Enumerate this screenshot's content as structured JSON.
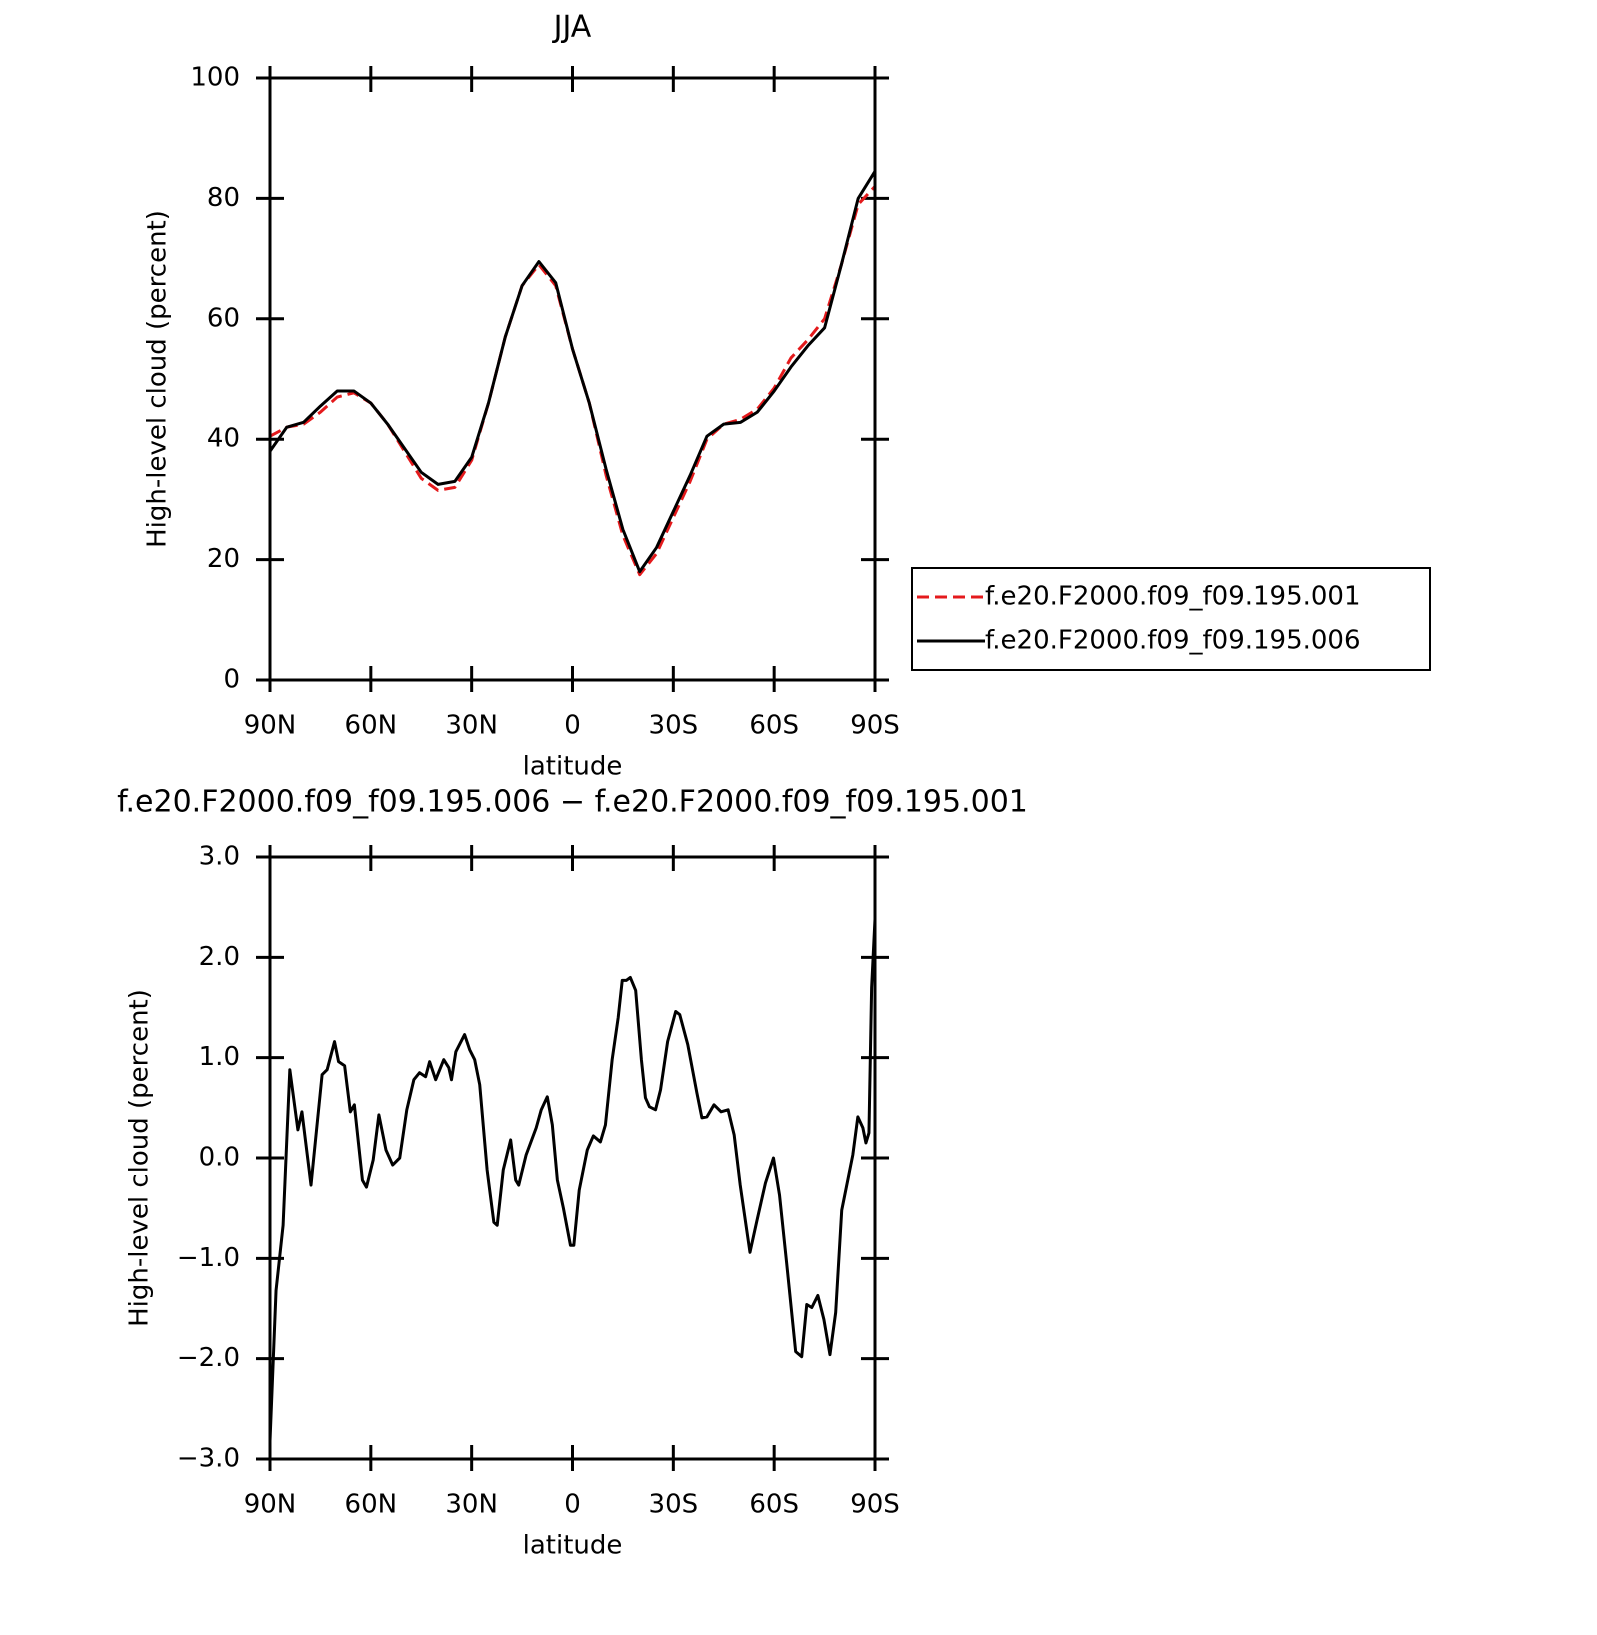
{
  "chart_data": [
    {
      "type": "line",
      "title": "JJA",
      "xlabel": "latitude",
      "ylabel": "High-level cloud (percent)",
      "xlim": [
        90,
        -90
      ],
      "xticks": [
        {
          "value": 90,
          "label": "90N"
        },
        {
          "value": 60,
          "label": "60N"
        },
        {
          "value": 30,
          "label": "30N"
        },
        0,
        {
          "value": -30,
          "label": "30S"
        },
        {
          "value": -60,
          "label": "60S"
        },
        {
          "value": -90,
          "label": "90S"
        }
      ],
      "ylim": [
        0,
        100
      ],
      "yticks": [
        0,
        20,
        40,
        60,
        80,
        100
      ],
      "legend": "right",
      "x": [
        90,
        85,
        80,
        75,
        70,
        65,
        60,
        55,
        50,
        45,
        40,
        35,
        30,
        25,
        20,
        15,
        10,
        5,
        0,
        -5,
        -10,
        -15,
        -20,
        -25,
        -30,
        -35,
        -40,
        -45,
        -50,
        -55,
        -60,
        -65,
        -70,
        -75,
        -80,
        -85,
        -90
      ],
      "series": [
        {
          "name": "f.e20.F2000.f09_f09.195.001",
          "color": "#e41a1c",
          "linestyle": "dashed",
          "values": [
            40.5,
            42,
            42.5,
            44.5,
            47,
            47.7,
            46,
            42.5,
            38,
            33.5,
            31.5,
            32,
            36.5,
            46,
            57,
            65.5,
            69,
            65.5,
            55,
            46,
            34,
            24,
            17.5,
            21,
            27,
            33,
            40,
            42.5,
            43.3,
            45,
            48.5,
            53.5,
            56.5,
            60,
            69,
            79,
            82
          ]
        },
        {
          "name": "f.e20.F2000.f09_f09.195.006",
          "color": "#000000",
          "linestyle": "solid",
          "values": [
            38,
            42,
            42.8,
            45.5,
            48,
            48,
            46,
            42.5,
            38.5,
            34.5,
            32.5,
            33,
            37,
            46,
            57,
            65.5,
            69.5,
            66,
            55,
            46,
            35,
            25,
            18,
            22,
            28,
            34,
            40.5,
            42.5,
            42.8,
            44.5,
            48,
            52,
            55.5,
            58.5,
            69,
            80,
            84.5
          ]
        }
      ]
    },
    {
      "type": "line",
      "title": "f.e20.F2000.f09_f09.195.006 − f.e20.F2000.f09_f09.195.001",
      "xlabel": "latitude",
      "ylabel": "High-level cloud (percent)",
      "xlim": [
        90,
        -90
      ],
      "xticks": [
        {
          "value": 90,
          "label": "90N"
        },
        {
          "value": 60,
          "label": "60N"
        },
        {
          "value": 30,
          "label": "30N"
        },
        0,
        {
          "value": -30,
          "label": "30S"
        },
        {
          "value": -60,
          "label": "60S"
        },
        {
          "value": -90,
          "label": "90S"
        }
      ],
      "ylim": [
        -3,
        3
      ],
      "yticks": [
        {
          "value": -3,
          "label": "−3.0"
        },
        {
          "value": -2,
          "label": "−2.0"
        },
        {
          "value": -1,
          "label": "−1.0"
        },
        {
          "value": 0,
          "label": "0.0"
        },
        {
          "value": 1,
          "label": "1.0"
        },
        {
          "value": 2,
          "label": "2.0"
        },
        {
          "value": 3,
          "label": "3.0"
        }
      ],
      "x": [
        90,
        88.2,
        86.1,
        84.1,
        81.7,
        80.5,
        77.8,
        74.5,
        73,
        70.8,
        69.6,
        67.8,
        66.1,
        64.9,
        62.5,
        61.3,
        59.3,
        57.6,
        55.5,
        53.5,
        51.4,
        49.3,
        47.2,
        45.5,
        43.7,
        42.5,
        40.7,
        38.3,
        36.8,
        36,
        34.7,
        32.1,
        30.6,
        29.1,
        27.6,
        25.4,
        23.4,
        22.4,
        20.6,
        18.4,
        16.9,
        16,
        13.8,
        10.8,
        9.3,
        7.5,
        6,
        4.5,
        2.7,
        0.6,
        -0.4,
        -2,
        -4.4,
        -6.2,
        -8.3,
        -9.8,
        -11.8,
        -13.6,
        -14.8,
        -16,
        -17.2,
        -18.8,
        -20.5,
        -21.7,
        -22.9,
        -24.7,
        -26.2,
        -28.3,
        -30.7,
        -31.9,
        -34.3,
        -37,
        -38.5,
        -40,
        -42.1,
        -44.2,
        -46.3,
        -48.1,
        -49.9,
        -52.8,
        -54.9,
        -57.4,
        -59.8,
        -61.6,
        -63.7,
        -66.4,
        -68.2,
        -69.7,
        -71.2,
        -73,
        -74.8,
        -76.6,
        -78.3,
        -80.1,
        -81.9,
        -83.4,
        -84.9,
        -86.4,
        -87.3,
        -88.2,
        -89,
        -90
      ],
      "series": [
        {
          "color": "#000000",
          "linestyle": "solid",
          "values": [
            -2.82,
            -1.32,
            -0.67,
            0.88,
            0.28,
            0.46,
            -0.27,
            0.83,
            0.88,
            1.16,
            0.96,
            0.92,
            0.46,
            0.53,
            -0.22,
            -0.29,
            -0.02,
            0.43,
            0.08,
            -0.07,
            0,
            0.48,
            0.78,
            0.85,
            0.81,
            0.96,
            0.78,
            0.98,
            0.9,
            0.78,
            1.06,
            1.23,
            1.08,
            0.98,
            0.73,
            -0.12,
            -0.64,
            -0.67,
            -0.12,
            0.18,
            -0.22,
            -0.27,
            0.03,
            0.3,
            0.48,
            0.61,
            0.33,
            -0.22,
            -0.5,
            -0.87,
            -0.87,
            -0.32,
            0.08,
            0.22,
            0.16,
            0.33,
            0.98,
            1.4,
            1.77,
            1.77,
            1.8,
            1.67,
            0.98,
            0.6,
            0.51,
            0.48,
            0.68,
            1.16,
            1.46,
            1.43,
            1.13,
            0.65,
            0.4,
            0.41,
            0.53,
            0.46,
            0.48,
            0.23,
            -0.27,
            -0.94,
            -0.62,
            -0.25,
            0,
            -0.37,
            -1.04,
            -1.93,
            -1.98,
            -1.46,
            -1.49,
            -1.37,
            -1.61,
            -1.96,
            -1.54,
            -0.52,
            -0.22,
            0.03,
            0.41,
            0.3,
            0.15,
            0.25,
            1.7,
            2.38
          ]
        }
      ]
    }
  ]
}
